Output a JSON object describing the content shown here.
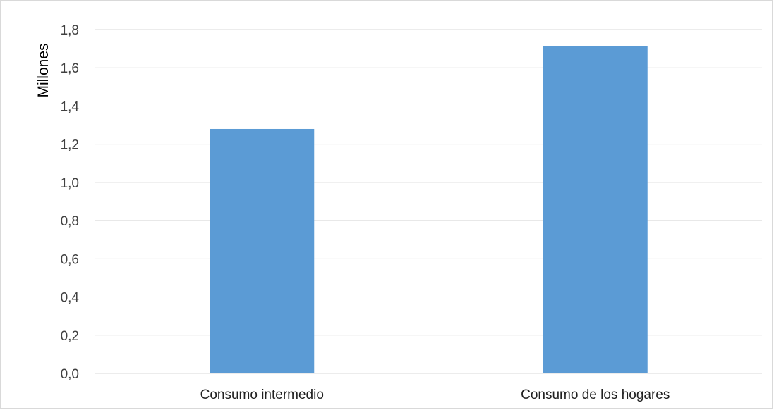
{
  "chart_data": {
    "type": "bar",
    "categories": [
      "Consumo intermedio",
      "Consumo de los hogares"
    ],
    "values": [
      1.28,
      1.715
    ],
    "title": "",
    "xlabel": "",
    "ylabel": "Millones",
    "ylim": [
      0,
      1.8
    ],
    "yticks": [
      "0,0",
      "0,2",
      "0,4",
      "0,6",
      "0,8",
      "1,0",
      "1,2",
      "1,4",
      "1,6",
      "1,8"
    ],
    "grid": true,
    "legend": "none",
    "colors": {
      "bar": "#5b9bd5",
      "grid": "#d9d9d9",
      "frame": "#d9d9d9"
    }
  }
}
